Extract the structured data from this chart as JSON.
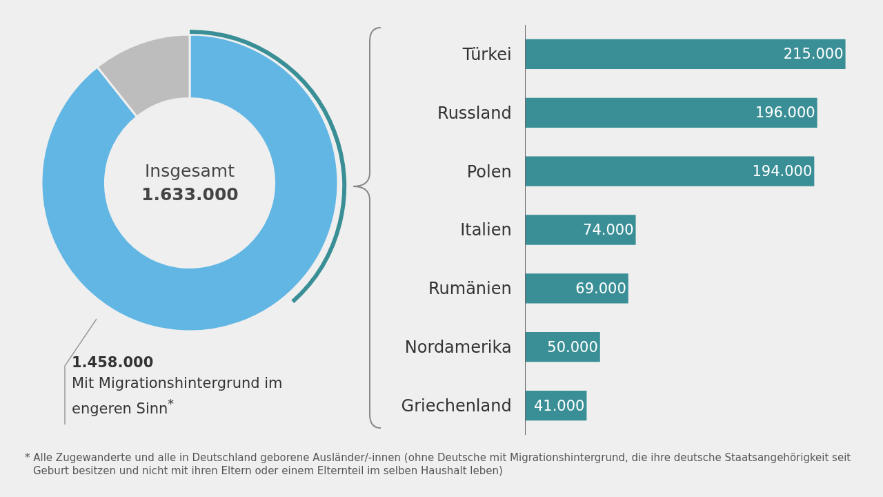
{
  "chart_data": [
    {
      "type": "donut",
      "categories": [
        "Mit Migrationshintergrund im engeren Sinn$^{*}$",
        null
      ],
      "values": [
        1458000,
        175000
      ],
      "colors": [
        "#62b6e4",
        "#bdbdbd"
      ],
      "value_labels": [
        "1.458.000",
        null
      ],
      "annotations": [
        "Insgesamt",
        "1.633.000"
      ],
      "legend": false
    },
    {
      "type": "bar",
      "orientation": "horizontal",
      "categories": [
        "Türkei",
        "Russland",
        "Polen",
        "Italien",
        "Rumänien",
        "Nordamerika",
        "Griechenland"
      ],
      "values": [
        215000,
        196000,
        194000,
        74000,
        69000,
        50000,
        41000
      ],
      "color": "#3a8f96",
      "value_labels": [
        "215.000",
        "196.000",
        "194.000",
        "74.000",
        "69.000",
        "50.000",
        "41.000"
      ],
      "tick_labels": "y",
      "annotations": [
        "* Alle Zugewanderte und alle in Deutschland geborene Ausländer/-innen (ohne Deutsche mit Migrationshintergrund, die ihre deutsche Staatsangehörigkeit seit Geburt besitzen und nicht mit ihren Eltern oder einem Elternteil im selben Haushalt leben)"
      ]
    }
  ]
}
